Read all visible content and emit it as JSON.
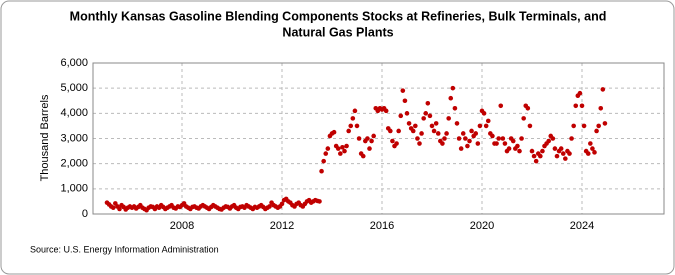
{
  "chart_data": {
    "type": "scatter",
    "title": [
      "Monthly Kansas Gasoline Blending Components Stocks at Refineries, Bulk Terminals, and",
      "Natural Gas Plants"
    ],
    "y_label": "Thousand Barrels",
    "source": "Source: U.S. Energy Information Administration",
    "color": "#c00000",
    "grid": true,
    "xlim": [
      2004.44,
      2027.28
    ],
    "xticks": [
      2008,
      2012,
      2016,
      2020,
      2024
    ],
    "ylim": [
      0,
      6000
    ],
    "yticks": [
      0,
      {
        "value": 1000,
        "label": "1,000"
      },
      {
        "value": 2000,
        "label": "2,000"
      },
      {
        "value": 3000,
        "label": "3,000"
      },
      {
        "value": 4000,
        "label": "4,000"
      },
      {
        "value": 5000,
        "label": "5,000"
      },
      {
        "value": 6000,
        "label": "6,000"
      }
    ],
    "x": [
      2005.0,
      2005.083,
      2005.167,
      2005.25,
      2005.333,
      2005.417,
      2005.5,
      2005.583,
      2005.667,
      2005.75,
      2005.833,
      2005.917,
      2006.0,
      2006.083,
      2006.167,
      2006.25,
      2006.333,
      2006.417,
      2006.5,
      2006.583,
      2006.667,
      2006.75,
      2006.833,
      2006.917,
      2007.0,
      2007.083,
      2007.167,
      2007.25,
      2007.333,
      2007.417,
      2007.5,
      2007.583,
      2007.667,
      2007.75,
      2007.833,
      2007.917,
      2008.0,
      2008.083,
      2008.167,
      2008.25,
      2008.333,
      2008.417,
      2008.5,
      2008.583,
      2008.667,
      2008.75,
      2008.833,
      2008.917,
      2009.0,
      2009.083,
      2009.167,
      2009.25,
      2009.333,
      2009.417,
      2009.5,
      2009.583,
      2009.667,
      2009.75,
      2009.833,
      2009.917,
      2010.0,
      2010.083,
      2010.167,
      2010.25,
      2010.333,
      2010.417,
      2010.5,
      2010.583,
      2010.667,
      2010.75,
      2010.833,
      2010.917,
      2011.0,
      2011.083,
      2011.167,
      2011.25,
      2011.333,
      2011.417,
      2011.5,
      2011.583,
      2011.667,
      2011.75,
      2011.833,
      2011.917,
      2012.0,
      2012.083,
      2012.167,
      2012.25,
      2012.333,
      2012.417,
      2012.5,
      2012.583,
      2012.667,
      2012.75,
      2012.833,
      2012.917,
      2013.0,
      2013.083,
      2013.167,
      2013.25,
      2013.333,
      2013.417,
      2013.5,
      2013.583,
      2013.667,
      2013.75,
      2013.833,
      2013.917,
      2014.0,
      2014.083,
      2014.167,
      2014.25,
      2014.333,
      2014.417,
      2014.5,
      2014.583,
      2014.667,
      2014.75,
      2014.833,
      2014.917,
      2015.0,
      2015.083,
      2015.167,
      2015.25,
      2015.333,
      2015.417,
      2015.5,
      2015.583,
      2015.667,
      2015.75,
      2015.833,
      2015.917,
      2016.0,
      2016.083,
      2016.167,
      2016.25,
      2016.333,
      2016.417,
      2016.5,
      2016.583,
      2016.667,
      2016.75,
      2016.833,
      2016.917,
      2017.0,
      2017.083,
      2017.167,
      2017.25,
      2017.333,
      2017.417,
      2017.5,
      2017.583,
      2017.667,
      2017.75,
      2017.833,
      2017.917,
      2018.0,
      2018.083,
      2018.167,
      2018.25,
      2018.333,
      2018.417,
      2018.5,
      2018.583,
      2018.667,
      2018.75,
      2018.833,
      2018.917,
      2019.0,
      2019.083,
      2019.167,
      2019.25,
      2019.333,
      2019.417,
      2019.5,
      2019.583,
      2019.667,
      2019.75,
      2019.833,
      2019.917,
      2020.0,
      2020.083,
      2020.167,
      2020.25,
      2020.333,
      2020.417,
      2020.5,
      2020.583,
      2020.667,
      2020.75,
      2020.833,
      2020.917,
      2021.0,
      2021.083,
      2021.167,
      2021.25,
      2021.333,
      2021.417,
      2021.5,
      2021.583,
      2021.667,
      2021.75,
      2021.833,
      2021.917,
      2022.0,
      2022.083,
      2022.167,
      2022.25,
      2022.333,
      2022.417,
      2022.5,
      2022.583,
      2022.667,
      2022.75,
      2022.833,
      2022.917,
      2023.0,
      2023.083,
      2023.167,
      2023.25,
      2023.333,
      2023.417,
      2023.5,
      2023.583,
      2023.667,
      2023.75,
      2023.833,
      2023.917,
      2024.0,
      2024.083,
      2024.167,
      2024.25,
      2024.333,
      2024.417,
      2024.5,
      2024.583,
      2024.667,
      2024.75,
      2024.833,
      2024.917
    ],
    "values": [
      450,
      380,
      300,
      250,
      420,
      300,
      200,
      350,
      280,
      180,
      250,
      300,
      250,
      300,
      220,
      280,
      350,
      250,
      200,
      150,
      250,
      300,
      280,
      200,
      300,
      250,
      350,
      280,
      200,
      250,
      300,
      350,
      250,
      220,
      300,
      280,
      350,
      420,
      300,
      250,
      200,
      280,
      300,
      250,
      220,
      300,
      350,
      300,
      250,
      200,
      280,
      350,
      300,
      250,
      200,
      180,
      250,
      300,
      280,
      220,
      300,
      350,
      250,
      200,
      280,
      300,
      250,
      350,
      300,
      250,
      200,
      280,
      250,
      300,
      350,
      280,
      200,
      250,
      300,
      450,
      350,
      300,
      250,
      300,
      400,
      550,
      600,
      500,
      450,
      350,
      300,
      400,
      450,
      350,
      300,
      400,
      500,
      550,
      450,
      500,
      550,
      520,
      500,
      1700,
      2100,
      2400,
      2600,
      3100,
      3200,
      3250,
      2700,
      2600,
      2400,
      2650,
      2500,
      2700,
      3300,
      3500,
      3800,
      4100,
      3500,
      3000,
      2400,
      2300,
      2900,
      3000,
      2600,
      2900,
      3100,
      4200,
      4100,
      4200,
      4150,
      4200,
      4100,
      3400,
      3300,
      2900,
      2700,
      2800,
      3300,
      3900,
      4900,
      4500,
      4000,
      3600,
      3400,
      3300,
      3500,
      3000,
      2800,
      3200,
      3800,
      4000,
      4400,
      3900,
      3500,
      3300,
      3600,
      3200,
      2900,
      2800,
      3000,
      3200,
      3800,
      4600,
      5000,
      4200,
      3600,
      3000,
      2600,
      3200,
      3000,
      2700,
      2900,
      3300,
      3100,
      3200,
      2800,
      3500,
      4100,
      4000,
      3500,
      3700,
      3200,
      3100,
      2800,
      2800,
      3000,
      4300,
      3000,
      2800,
      2500,
      2600,
      3000,
      2900,
      2600,
      2700,
      2500,
      3000,
      3800,
      4300,
      4200,
      3500,
      2500,
      2300,
      2100,
      2400,
      2300,
      2500,
      2700,
      2800,
      2900,
      3100,
      3000,
      2600,
      2300,
      2500,
      2600,
      2400,
      2200,
      2500,
      2400,
      3000,
      3500,
      4300,
      4700,
      4800,
      4300,
      3500,
      2500,
      2400,
      2800,
      2600,
      2450,
      3300,
      3500,
      4200,
      4950,
      3600
    ]
  }
}
